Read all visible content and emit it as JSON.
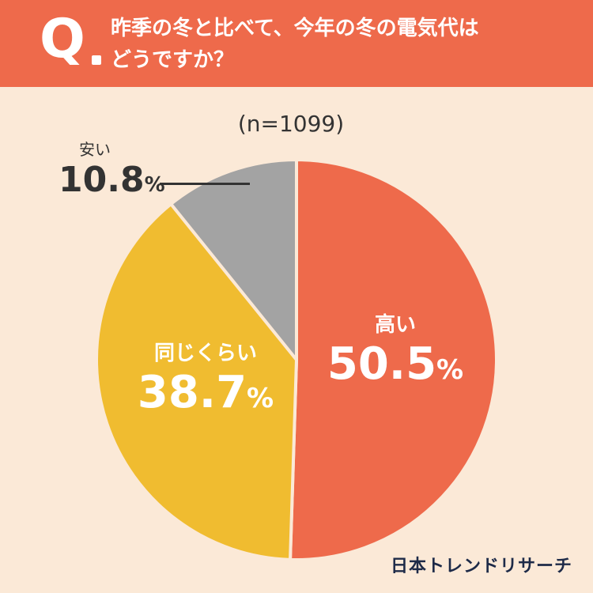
{
  "header": {
    "q_mark": "Q",
    "question_line1": "昨季の冬と比べて、今年の冬の電気代は",
    "question_line2": "どうですか？"
  },
  "sample_size": "(n=1099)",
  "brand": "日本トレンドリサーチ",
  "colors": {
    "header_bg": "#ee6a4b",
    "page_bg": "#fbe9d7",
    "high": "#ee6a4b",
    "same": "#f0bc30",
    "cheap": "#a3a3a3"
  },
  "chart_data": {
    "type": "pie",
    "title": "昨季の冬と比べて、今年の冬の電気代はどうですか？",
    "n": 1099,
    "unit": "%",
    "slices": [
      {
        "label": "高い",
        "value": 50.5,
        "value_text": "50.5",
        "color": "#ee6a4b"
      },
      {
        "label": "同じくらい",
        "value": 38.7,
        "value_text": "38.7",
        "color": "#f0bc30"
      },
      {
        "label": "安い",
        "value": 10.8,
        "value_text": "10.8",
        "color": "#a3a3a3"
      }
    ],
    "start_angle": "12 o'clock",
    "direction": "clockwise"
  }
}
